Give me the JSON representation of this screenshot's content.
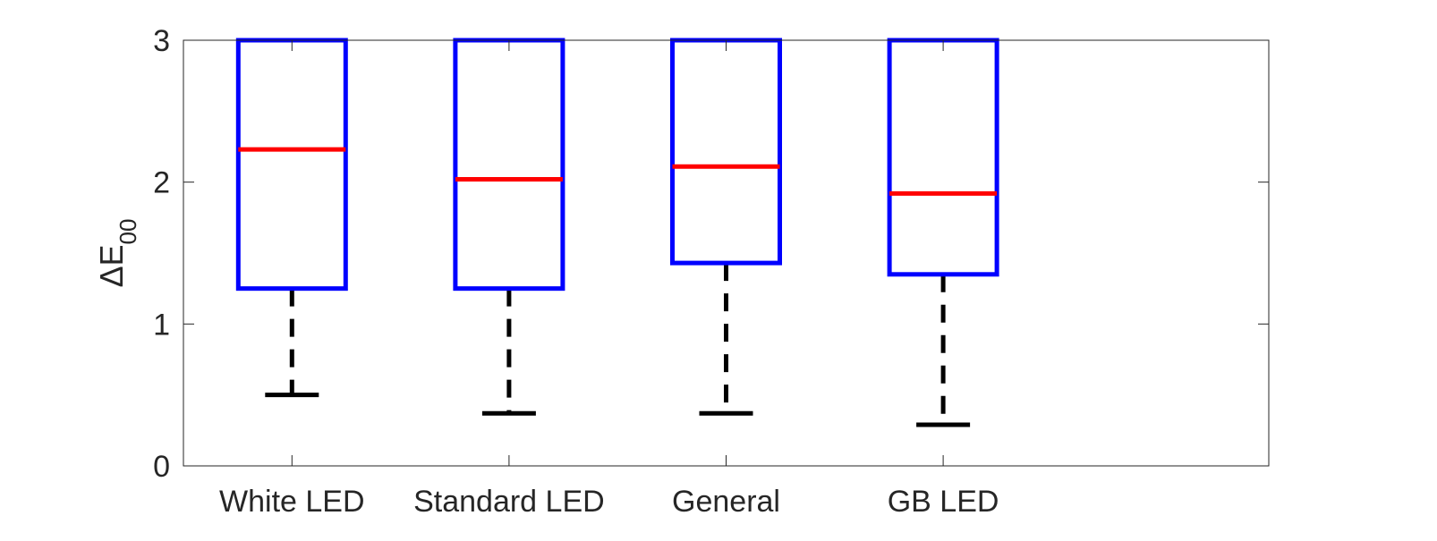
{
  "chart_data": {
    "type": "box",
    "title": "",
    "xlabel": "",
    "ylabel_main": "ΔE",
    "ylabel_sub": "00",
    "ylim": [
      0,
      3
    ],
    "yticks": [
      0,
      1,
      2,
      3
    ],
    "categories": [
      "White LED",
      "Standard LED",
      "General",
      "GB LED"
    ],
    "boxes": [
      {
        "name": "White LED",
        "whisker_low": 0.5,
        "q1": 1.25,
        "median": 2.23,
        "q3": 3.0
      },
      {
        "name": "Standard LED",
        "whisker_low": 0.37,
        "q1": 1.25,
        "median": 2.02,
        "q3": 3.0
      },
      {
        "name": "General",
        "whisker_low": 0.37,
        "q1": 1.43,
        "median": 2.11,
        "q3": 3.0
      },
      {
        "name": "GB LED",
        "whisker_low": 0.29,
        "q1": 1.35,
        "median": 1.92,
        "q3": 3.0
      }
    ],
    "grid": false,
    "legend": "none",
    "colors": {
      "box": "#0000ff",
      "median": "#ff0000",
      "whisker": "#000000",
      "axis": "#262626"
    }
  }
}
